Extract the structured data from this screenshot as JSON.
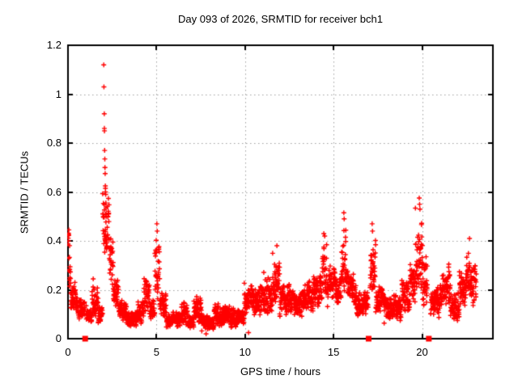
{
  "title": "Day 093 of 2026, SRMTID for receiver bch1",
  "chart_data": {
    "type": "scatter",
    "title": "Day 093 of 2026, SRMTID for receiver bch1",
    "xlabel": "GPS time / hours",
    "ylabel": "SRMTID / TECUs",
    "xlim": [
      0,
      24
    ],
    "ylim": [
      0,
      1.2
    ],
    "x_ticks": [
      0,
      5,
      10,
      15,
      20
    ],
    "x_tick_labels": [
      "0",
      "5",
      "10",
      "15",
      "20"
    ],
    "y_ticks": [
      0,
      0.2,
      0.4,
      0.6,
      0.8,
      1.0,
      1.2
    ],
    "y_tick_labels": [
      "0",
      "0.2",
      "0.4",
      "0.6",
      "0.8",
      "1",
      "1.2"
    ],
    "grid": true,
    "legend_position": "none",
    "marker": "plus",
    "point_color": "#ff0000",
    "grid_color": "#a0a0a0",
    "border_color": "#000000",
    "background_color": "#ffffff",
    "sample_interval_hours": 0.0083333,
    "time_span": [
      0,
      23.06
    ],
    "gaps": [
      [
        0.95,
        1.02
      ],
      [
        16.95,
        17.06
      ],
      [
        20.3,
        20.48
      ]
    ],
    "band_segments": [
      [
        0.0,
        0.15,
        0.17,
        0.45
      ],
      [
        0.15,
        0.45,
        0.1,
        0.26
      ],
      [
        0.45,
        0.95,
        0.07,
        0.18
      ],
      [
        1.02,
        1.35,
        0.05,
        0.14
      ],
      [
        1.35,
        1.7,
        0.07,
        0.3
      ],
      [
        1.7,
        1.95,
        0.06,
        0.16
      ],
      [
        1.95,
        2.08,
        0.3,
        0.62
      ],
      [
        2.08,
        2.32,
        0.32,
        0.62
      ],
      [
        2.32,
        2.55,
        0.18,
        0.45
      ],
      [
        2.55,
        2.85,
        0.1,
        0.26
      ],
      [
        2.85,
        3.3,
        0.06,
        0.17
      ],
      [
        3.3,
        3.95,
        0.04,
        0.13
      ],
      [
        3.95,
        4.25,
        0.05,
        0.16
      ],
      [
        4.25,
        4.6,
        0.08,
        0.31
      ],
      [
        4.6,
        4.9,
        0.07,
        0.2
      ],
      [
        4.9,
        5.18,
        0.14,
        0.47
      ],
      [
        5.18,
        5.55,
        0.07,
        0.22
      ],
      [
        5.55,
        6.4,
        0.04,
        0.12
      ],
      [
        6.4,
        6.75,
        0.05,
        0.17
      ],
      [
        6.75,
        7.1,
        0.03,
        0.11
      ],
      [
        7.1,
        7.55,
        0.05,
        0.19
      ],
      [
        7.55,
        8.25,
        0.03,
        0.1
      ],
      [
        8.25,
        9.25,
        0.04,
        0.15
      ],
      [
        9.25,
        9.95,
        0.04,
        0.14
      ],
      [
        9.95,
        11.05,
        0.08,
        0.25
      ],
      [
        11.05,
        11.55,
        0.08,
        0.28
      ],
      [
        11.55,
        11.95,
        0.12,
        0.38
      ],
      [
        11.95,
        12.55,
        0.08,
        0.25
      ],
      [
        12.55,
        13.2,
        0.07,
        0.22
      ],
      [
        13.2,
        13.85,
        0.09,
        0.26
      ],
      [
        13.85,
        14.35,
        0.1,
        0.3
      ],
      [
        14.35,
        14.65,
        0.14,
        0.43
      ],
      [
        14.65,
        15.1,
        0.13,
        0.35
      ],
      [
        15.1,
        15.45,
        0.12,
        0.3
      ],
      [
        15.45,
        15.75,
        0.15,
        0.5
      ],
      [
        15.75,
        16.25,
        0.11,
        0.3
      ],
      [
        16.25,
        16.95,
        0.08,
        0.22
      ],
      [
        17.06,
        17.38,
        0.13,
        0.46
      ],
      [
        17.38,
        17.85,
        0.09,
        0.25
      ],
      [
        17.85,
        18.85,
        0.06,
        0.2
      ],
      [
        18.85,
        19.32,
        0.08,
        0.28
      ],
      [
        19.32,
        19.62,
        0.1,
        0.35
      ],
      [
        19.62,
        20.02,
        0.14,
        0.55
      ],
      [
        20.02,
        20.3,
        0.11,
        0.38
      ],
      [
        20.48,
        21.1,
        0.07,
        0.24
      ],
      [
        21.1,
        21.6,
        0.11,
        0.33
      ],
      [
        21.6,
        22.1,
        0.06,
        0.23
      ],
      [
        22.1,
        22.5,
        0.11,
        0.3
      ],
      [
        22.5,
        22.82,
        0.14,
        0.41
      ],
      [
        22.82,
        23.06,
        0.11,
        0.33
      ]
    ],
    "outlier_points": [
      [
        0.02,
        0.43
      ],
      [
        0.03,
        0.4
      ],
      [
        0.05,
        0.445
      ],
      [
        2.02,
        1.12
      ],
      [
        2.03,
        1.03
      ],
      [
        2.05,
        0.92
      ],
      [
        2.055,
        0.86
      ],
      [
        2.06,
        0.85
      ],
      [
        2.07,
        0.77
      ],
      [
        2.08,
        0.735
      ],
      [
        2.085,
        0.7
      ],
      [
        2.09,
        0.7
      ],
      [
        2.1,
        0.675
      ],
      [
        2.11,
        0.625
      ],
      [
        2.115,
        0.615
      ],
      [
        2.12,
        0.6
      ],
      [
        2.13,
        0.59
      ],
      [
        2.14,
        0.555
      ],
      [
        2.145,
        0.535
      ],
      [
        2.15,
        0.51
      ],
      [
        2.16,
        0.5
      ],
      [
        5.02,
        0.47
      ],
      [
        5.04,
        0.44
      ],
      [
        7.8,
        0.02
      ],
      [
        10.2,
        0.025
      ],
      [
        11.8,
        0.38
      ],
      [
        14.45,
        0.43
      ],
      [
        14.5,
        0.42
      ],
      [
        15.58,
        0.515
      ],
      [
        15.6,
        0.49
      ],
      [
        17.18,
        0.47
      ],
      [
        17.2,
        0.44
      ],
      [
        19.84,
        0.575
      ],
      [
        19.86,
        0.55
      ],
      [
        19.88,
        0.53
      ],
      [
        22.68,
        0.41
      ]
    ],
    "zero_markers": {
      "marker": "filled-square",
      "points": [
        [
          0.97,
          0
        ],
        [
          16.98,
          0
        ],
        [
          20.38,
          0
        ]
      ]
    }
  }
}
